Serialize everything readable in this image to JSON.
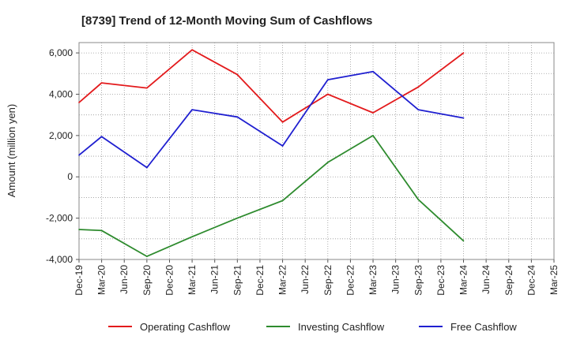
{
  "chart_data": {
    "type": "line",
    "title": "[8739]  Trend of 12-Month Moving Sum of Cashflows",
    "ylabel": "Amount (million yen)",
    "xlabel": "",
    "x": [
      "Dec-19",
      "Mar-20",
      "Jun-20",
      "Sep-20",
      "Dec-20",
      "Mar-21",
      "Jun-21",
      "Sep-21",
      "Dec-21",
      "Mar-22",
      "Jun-22",
      "Sep-22",
      "Dec-22",
      "Mar-23",
      "Jun-23",
      "Sep-23",
      "Dec-23",
      "Mar-24",
      "Jun-24",
      "Sep-24",
      "Dec-24",
      "Mar-25"
    ],
    "ylim": [
      -4000,
      6500
    ],
    "yticks": [
      -4000,
      -2000,
      0,
      2000,
      4000,
      6000
    ],
    "ytick_labels": [
      "-4,000",
      "-2,000",
      "0",
      "2,000",
      "4,000",
      "6,000"
    ],
    "grid": true,
    "legend_position": "bottom",
    "series": [
      {
        "name": "Operating Cashflow",
        "color": "#e31a1c",
        "values": [
          3600,
          4550,
          null,
          4300,
          null,
          6150,
          null,
          4950,
          null,
          2650,
          null,
          4000,
          null,
          3100,
          null,
          4350,
          null,
          6000,
          null,
          null,
          null,
          null
        ]
      },
      {
        "name": "Investing Cashflow",
        "color": "#2e8b2e",
        "values": [
          -2550,
          -2600,
          null,
          -3850,
          null,
          -2900,
          null,
          -2000,
          null,
          -1150,
          null,
          700,
          null,
          2000,
          null,
          -1100,
          null,
          -3100,
          null,
          null,
          null,
          null
        ]
      },
      {
        "name": "Free Cashflow",
        "color": "#1f1fd0",
        "values": [
          1050,
          1950,
          null,
          450,
          null,
          3250,
          null,
          2900,
          null,
          1500,
          null,
          4700,
          null,
          5100,
          null,
          3250,
          null,
          2850,
          null,
          null,
          null,
          null
        ]
      }
    ]
  }
}
